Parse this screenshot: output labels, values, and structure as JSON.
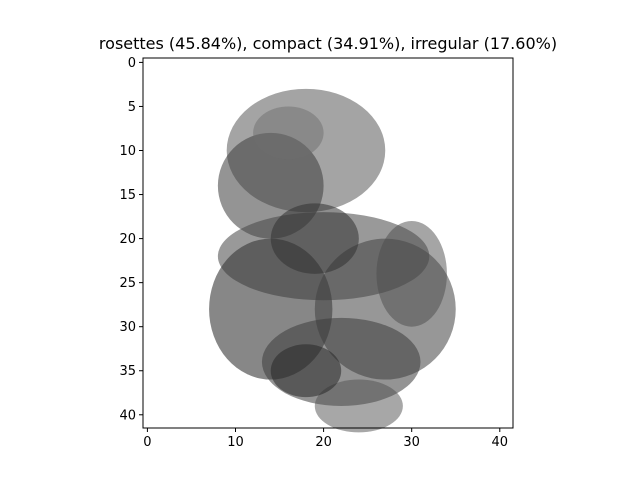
{
  "figure": {
    "title": "rosettes (45.84%), compact (34.91%), irregular (17.60%)",
    "image_grid": {
      "rows": 42,
      "cols": 42
    },
    "x_ticks": [
      {
        "value": 0,
        "label": "0"
      },
      {
        "value": 10,
        "label": "10"
      },
      {
        "value": 20,
        "label": "20"
      },
      {
        "value": 30,
        "label": "30"
      },
      {
        "value": 40,
        "label": "40"
      }
    ],
    "y_ticks": [
      {
        "value": 0,
        "label": "0"
      },
      {
        "value": 5,
        "label": "5"
      },
      {
        "value": 10,
        "label": "10"
      },
      {
        "value": 15,
        "label": "15"
      },
      {
        "value": 20,
        "label": "20"
      },
      {
        "value": 25,
        "label": "25"
      },
      {
        "value": 30,
        "label": "30"
      },
      {
        "value": 35,
        "label": "35"
      },
      {
        "value": 40,
        "label": "40"
      }
    ],
    "colormap": "gray_r"
  }
}
